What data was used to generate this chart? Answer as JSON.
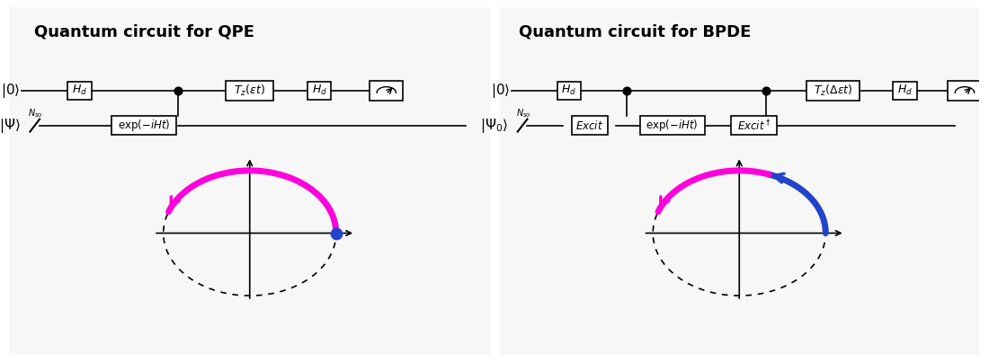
{
  "left_title": "Quantum circuit for QPE",
  "right_title": "Quantum circuit for BPDE",
  "left_border_color": "#22aa22",
  "right_border_color": "#cc7722",
  "magenta_color": "#ff00dd",
  "blue_color": "#2244cc"
}
